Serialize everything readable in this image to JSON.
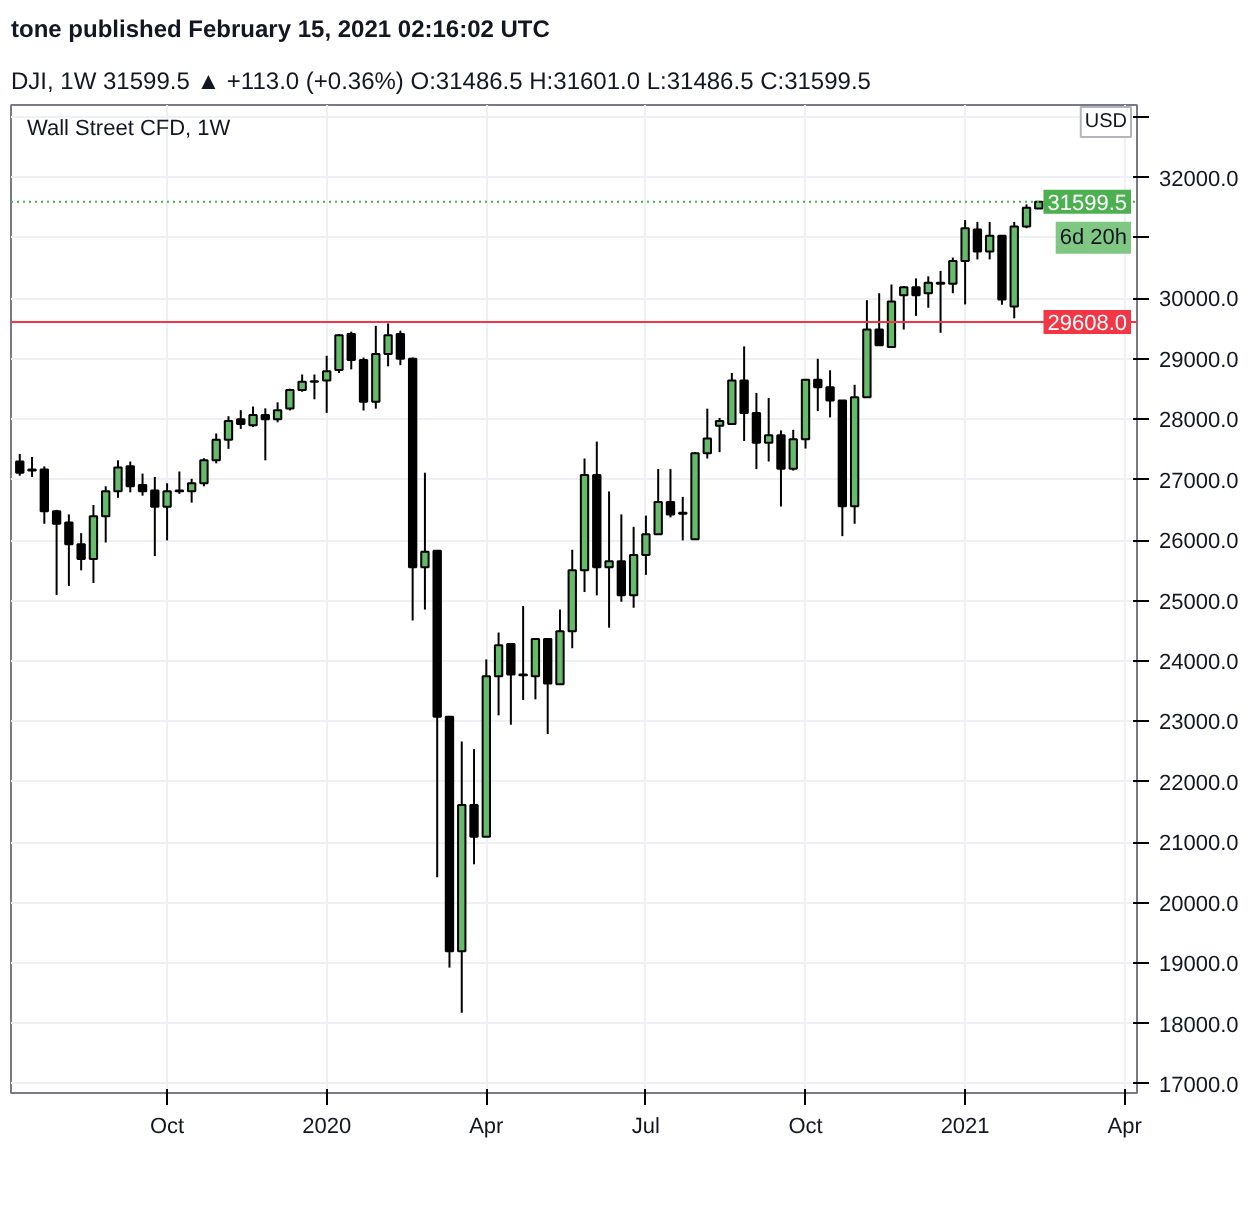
{
  "chart_data": {
    "type": "candlestick",
    "title": "Wall Street CFD, 1W",
    "annotations": [
      "tone published February 15, 2021 02:16:02 UTC",
      "DJI, 1W  31599.5 ▲ +113.0 (+0.36%) O:31486.5 H:31601.0 L:31486.5 C:31599.5",
      "USD",
      "6d 20h"
    ],
    "x": [
      "2019-07-15",
      "2019-07-22",
      "2019-07-29",
      "2019-08-05",
      "2019-08-12",
      "2019-08-19",
      "2019-08-26",
      "2019-09-02",
      "2019-09-09",
      "2019-09-16",
      "2019-09-23",
      "2019-09-30",
      "2019-10-07",
      "2019-10-14",
      "2019-10-21",
      "2019-10-28",
      "2019-11-04",
      "2019-11-11",
      "2019-11-18",
      "2019-11-25",
      "2019-12-02",
      "2019-12-09",
      "2019-12-16",
      "2019-12-23",
      "2019-12-30",
      "2020-01-06",
      "2020-01-13",
      "2020-01-20",
      "2020-01-27",
      "2020-02-03",
      "2020-02-10",
      "2020-02-17",
      "2020-02-24",
      "2020-03-02",
      "2020-03-09",
      "2020-03-16",
      "2020-03-23",
      "2020-03-30",
      "2020-04-06",
      "2020-04-13",
      "2020-04-20",
      "2020-04-27",
      "2020-05-04",
      "2020-05-11",
      "2020-05-18",
      "2020-05-25",
      "2020-06-01",
      "2020-06-08",
      "2020-06-15",
      "2020-06-22",
      "2020-06-29",
      "2020-07-06",
      "2020-07-13",
      "2020-07-20",
      "2020-07-27",
      "2020-08-03",
      "2020-08-10",
      "2020-08-17",
      "2020-08-24",
      "2020-08-31",
      "2020-09-07",
      "2020-09-14",
      "2020-09-21",
      "2020-09-28",
      "2020-10-05",
      "2020-10-12",
      "2020-10-19",
      "2020-10-26",
      "2020-11-02",
      "2020-11-09",
      "2020-11-16",
      "2020-11-23",
      "2020-11-30",
      "2020-12-07",
      "2020-12-14",
      "2020-12-21",
      "2020-12-28",
      "2021-01-04",
      "2021-01-11",
      "2021-01-18",
      "2021-01-25",
      "2021-02-01",
      "2021-02-08",
      "2021-02-15"
    ],
    "ohlc": [
      [
        27301,
        27425,
        27065,
        27116
      ],
      [
        27170,
        27375,
        27045,
        27150
      ],
      [
        27170,
        27220,
        26270,
        26477
      ],
      [
        26477,
        26500,
        25090,
        26270
      ],
      [
        26290,
        26425,
        25240,
        25930
      ],
      [
        25930,
        26115,
        25500,
        25685
      ],
      [
        25685,
        26580,
        25290,
        26395
      ],
      [
        26395,
        26890,
        25960,
        26810
      ],
      [
        26810,
        27320,
        26700,
        27200
      ],
      [
        27220,
        27300,
        26790,
        26890
      ],
      [
        26910,
        27100,
        26735,
        26810
      ],
      [
        26820,
        27045,
        25735,
        26550
      ],
      [
        26550,
        26940,
        25995,
        26810
      ],
      [
        26810,
        27135,
        26765,
        26820
      ],
      [
        26810,
        27015,
        26620,
        26940
      ],
      [
        26940,
        27355,
        26890,
        27320
      ],
      [
        27320,
        27765,
        27270,
        27660
      ],
      [
        27660,
        28050,
        27510,
        27970
      ],
      [
        28000,
        28150,
        27840,
        27920
      ],
      [
        27900,
        28210,
        27870,
        28070
      ],
      [
        28070,
        28180,
        27320,
        28000
      ],
      [
        28000,
        28280,
        27950,
        28150
      ],
      [
        28176,
        28505,
        28145,
        28485
      ],
      [
        28485,
        28740,
        28455,
        28620
      ],
      [
        28620,
        28740,
        28330,
        28630
      ],
      [
        28640,
        29050,
        28105,
        28795
      ],
      [
        28815,
        29410,
        28765,
        29390
      ],
      [
        29410,
        29450,
        28825,
        28980
      ],
      [
        28980,
        29020,
        28145,
        28290
      ],
      [
        28290,
        29545,
        28175,
        29080
      ],
      [
        29080,
        29585,
        28875,
        29390
      ],
      [
        29410,
        29465,
        28895,
        29000
      ],
      [
        29000,
        29020,
        24670,
        25550
      ],
      [
        25550,
        27115,
        24850,
        25805
      ],
      [
        25825,
        25825,
        20420,
        23075
      ],
      [
        23075,
        23075,
        18925,
        19195
      ],
      [
        19195,
        22665,
        18180,
        21615
      ],
      [
        21615,
        22540,
        20635,
        21090
      ],
      [
        21090,
        24025,
        21090,
        23745
      ],
      [
        23745,
        24470,
        23100,
        24260
      ],
      [
        24280,
        24280,
        22945,
        23775
      ],
      [
        23775,
        24910,
        23355,
        23765
      ],
      [
        23745,
        24380,
        23365,
        24365
      ],
      [
        24365,
        24365,
        22790,
        23625
      ],
      [
        23615,
        24850,
        23615,
        24490
      ],
      [
        24490,
        25840,
        24210,
        25500
      ],
      [
        25500,
        27350,
        25140,
        27075
      ],
      [
        27075,
        27630,
        25085,
        25550
      ],
      [
        25550,
        26805,
        24550,
        25650
      ],
      [
        25650,
        26425,
        24980,
        25085
      ],
      [
        25085,
        26220,
        24880,
        25755
      ],
      [
        25755,
        26405,
        25425,
        26095
      ],
      [
        26095,
        27175,
        26095,
        26630
      ],
      [
        26630,
        27175,
        26375,
        26425
      ],
      [
        26445,
        26715,
        25995,
        26445
      ],
      [
        26015,
        27455,
        26015,
        27435
      ],
      [
        27435,
        28175,
        27350,
        27680
      ],
      [
        27890,
        28020,
        27455,
        27970
      ],
      [
        27920,
        28765,
        27920,
        28640
      ],
      [
        28640,
        29205,
        27640,
        28105
      ],
      [
        28105,
        28435,
        27175,
        27610
      ],
      [
        27610,
        28350,
        27300,
        27735
      ],
      [
        27735,
        27815,
        26555,
        27180
      ],
      [
        27180,
        27825,
        27150,
        27670
      ],
      [
        27670,
        28655,
        27515,
        28655
      ],
      [
        28655,
        29000,
        28135,
        28530
      ],
      [
        28530,
        28810,
        28030,
        28310
      ],
      [
        28310,
        28310,
        26065,
        26560
      ],
      [
        26560,
        28570,
        26270,
        28365
      ],
      [
        28365,
        29970,
        28365,
        29485
      ],
      [
        29485,
        30085,
        29225,
        29225
      ],
      [
        29195,
        30230,
        29195,
        29950
      ],
      [
        30050,
        30205,
        29485,
        30185
      ],
      [
        30185,
        30330,
        29710,
        30050
      ],
      [
        30085,
        30365,
        29845,
        30260
      ],
      [
        30250,
        30455,
        29430,
        30250
      ],
      [
        30240,
        30675,
        30085,
        30620
      ],
      [
        30620,
        31295,
        29900,
        31160
      ],
      [
        31140,
        31265,
        30645,
        30775
      ],
      [
        30775,
        31265,
        30645,
        31035
      ],
      [
        31035,
        31035,
        29895,
        29980
      ],
      [
        29865,
        31265,
        29670,
        31190
      ],
      [
        31190,
        31555,
        31160,
        31500
      ],
      [
        31486.5,
        31601.0,
        31486.5,
        31599.5
      ]
    ],
    "colors": [
      "#000000",
      "#000000",
      "#000000",
      "#000000",
      "#000000",
      "#000000",
      "#66bb6a",
      "#66bb6a",
      "#66bb6a",
      "#000000",
      "#000000",
      "#000000",
      "#66bb6a",
      "#66bb6a",
      "#66bb6a",
      "#66bb6a",
      "#66bb6a",
      "#66bb6a",
      "#000000",
      "#66bb6a",
      "#000000",
      "#66bb6a",
      "#66bb6a",
      "#66bb6a",
      "#66bb6a",
      "#66bb6a",
      "#66bb6a",
      "#000000",
      "#000000",
      "#66bb6a",
      "#66bb6a",
      "#000000",
      "#000000",
      "#66bb6a",
      "#000000",
      "#000000",
      "#66bb6a",
      "#000000",
      "#66bb6a",
      "#66bb6a",
      "#000000",
      "#000000",
      "#66bb6a",
      "#000000",
      "#66bb6a",
      "#66bb6a",
      "#66bb6a",
      "#000000",
      "#66bb6a",
      "#000000",
      "#66bb6a",
      "#66bb6a",
      "#66bb6a",
      "#000000",
      "#000000",
      "#66bb6a",
      "#66bb6a",
      "#66bb6a",
      "#66bb6a",
      "#000000",
      "#000000",
      "#66bb6a",
      "#000000",
      "#66bb6a",
      "#66bb6a",
      "#000000",
      "#000000",
      "#000000",
      "#66bb6a",
      "#66bb6a",
      "#000000",
      "#66bb6a",
      "#66bb6a",
      "#000000",
      "#66bb6a",
      "#000000",
      "#66bb6a",
      "#66bb6a",
      "#000000",
      "#66bb6a",
      "#000000",
      "#66bb6a",
      "#66bb6a",
      "#66bb6a"
    ],
    "xlim": [
      "2019-07-10",
      "2021-04-12"
    ],
    "xticks": [
      {
        "value": "2019-10-07",
        "label": "Oct"
      },
      {
        "value": "2020-01-06",
        "label": "2020"
      },
      {
        "value": "2020-04-06",
        "label": "Apr"
      },
      {
        "value": "2020-07-06",
        "label": "Jul"
      },
      {
        "value": "2020-10-05",
        "label": "Oct"
      },
      {
        "value": "2021-01-04",
        "label": "2021"
      },
      {
        "value": "2021-04-05",
        "label": "Apr"
      }
    ],
    "ylim": [
      16850,
      33200
    ],
    "yticks": [
      {
        "value": 17000,
        "label": "17000.0"
      },
      {
        "value": 18000,
        "label": "18000.0"
      },
      {
        "value": 19000,
        "label": "19000.0"
      },
      {
        "value": 20000,
        "label": "20000.0"
      },
      {
        "value": 21000,
        "label": "21000.0"
      },
      {
        "value": 22000,
        "label": "22000.0"
      },
      {
        "value": 23000,
        "label": "23000.0"
      },
      {
        "value": 24000,
        "label": "24000.0"
      },
      {
        "value": 25000,
        "label": "25000.0"
      },
      {
        "value": 26000,
        "label": "26000.0"
      },
      {
        "value": 27000,
        "label": "27000.0"
      },
      {
        "value": 28000,
        "label": "28000.0"
      },
      {
        "value": 29000,
        "label": "29000.0"
      },
      {
        "value": 30000,
        "label": "30000.0"
      },
      {
        "value": 31000,
        "label": null
      },
      {
        "value": 32000,
        "label": "32000.0"
      },
      {
        "value": 33000,
        "label": null
      }
    ],
    "ref_lines": [
      {
        "axis": "y",
        "value": 29608.0,
        "label": "29608.0",
        "color": "#f23645",
        "line_style": "solid"
      },
      {
        "axis": "y",
        "value": 31599.5,
        "label": "31599.5",
        "color": "#4caf50",
        "line_style": "dotted"
      }
    ],
    "grid": true
  }
}
